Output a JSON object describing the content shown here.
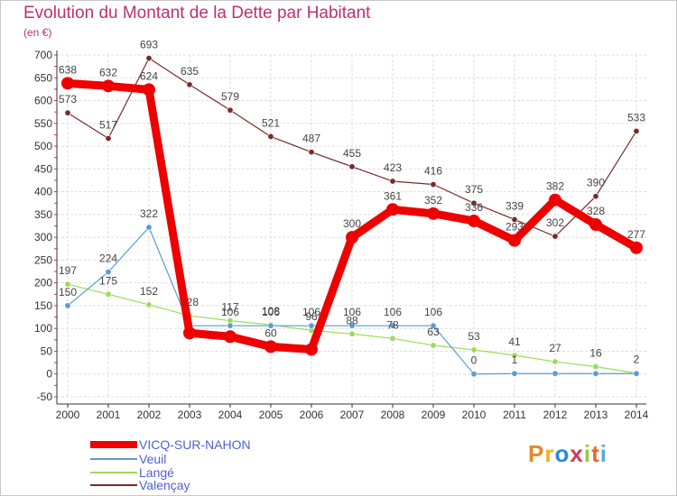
{
  "chart_data": {
    "type": "line",
    "title": "Evolution du Montant de la Dette par Habitant",
    "subtitle": "(en €)",
    "x": [
      "2000",
      "2001",
      "2002",
      "2003",
      "2004",
      "2005",
      "2006",
      "2007",
      "2008",
      "2009",
      "2010",
      "2011",
      "2012",
      "2013",
      "2014"
    ],
    "ylim": [
      -50,
      700
    ],
    "yticks": [
      "-50",
      "0",
      "50",
      "100",
      "150",
      "200",
      "250",
      "300",
      "350",
      "400",
      "450",
      "500",
      "550",
      "600",
      "650",
      "700"
    ],
    "grid": true,
    "legend_position": "bottom-left",
    "series": [
      {
        "name": "VICQ-SUR-NAHON",
        "color": "#ee0000",
        "values": [
          638,
          632,
          624,
          90,
          82,
          60,
          54,
          300,
          361,
          352,
          336,
          293,
          382,
          328,
          277
        ],
        "labels": [
          "638",
          "632",
          "624",
          "",
          "",
          "60",
          "",
          "300",
          "361",
          "352",
          "336",
          "293",
          "382",
          "328",
          "277"
        ]
      },
      {
        "name": "Veuil",
        "color": "#5a9ad6",
        "values": [
          150,
          224,
          322,
          106,
          106,
          106,
          106,
          106,
          106,
          106,
          0,
          1,
          1,
          1,
          1
        ],
        "labels": [
          "150",
          "224",
          "322",
          "",
          "106",
          "106",
          "106",
          "106",
          "106",
          "106",
          "0",
          "1",
          "",
          "",
          ""
        ]
      },
      {
        "name": "Langé",
        "color": "#99dd55",
        "values": [
          197,
          175,
          152,
          128,
          117,
          108,
          96,
          88,
          78,
          63,
          53,
          41,
          27,
          16,
          2
        ],
        "labels": [
          "197",
          "175",
          "152",
          "128",
          "117",
          "108",
          "96",
          "88",
          "78",
          "63",
          "53",
          "41",
          "27",
          "16",
          "2"
        ]
      },
      {
        "name": "Valençay",
        "color": "#7a2a2a",
        "values": [
          573,
          517,
          693,
          635,
          579,
          521,
          487,
          455,
          423,
          416,
          375,
          339,
          302,
          390,
          533
        ],
        "labels": [
          "573",
          "517",
          "693",
          "635",
          "579",
          "521",
          "487",
          "455",
          "423",
          "416",
          "375",
          "339",
          "302",
          "390",
          "533"
        ]
      }
    ]
  },
  "logo": {
    "text": "Proxiti",
    "letters": [
      "P",
      "r",
      "o",
      "x",
      "i",
      "t",
      "i"
    ],
    "colors": [
      "#e08a2a",
      "#f0b020",
      "#2a8ad6",
      "#d03a5a",
      "#9ac83a",
      "#e06a2a",
      "#5aa8e0"
    ]
  }
}
